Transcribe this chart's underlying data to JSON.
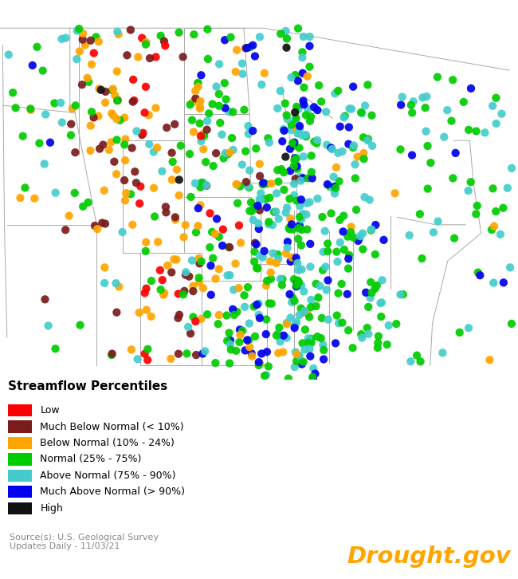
{
  "legend_title": "Streamflow Percentiles",
  "categories": [
    {
      "label": "Low",
      "color": "#FF0000"
    },
    {
      "label": "Much Below Normal (< 10%)",
      "color": "#7B1C1C"
    },
    {
      "label": "Below Normal (10% - 24%)",
      "color": "#FFA500"
    },
    {
      "label": "Normal (25% - 75%)",
      "color": "#00CC00"
    },
    {
      "label": "Above Normal (75% - 90%)",
      "color": "#44CCCC"
    },
    {
      "label": "Much Above Normal (> 90%)",
      "color": "#0000EE"
    },
    {
      "label": "High",
      "color": "#111111"
    }
  ],
  "source_text": "Source(s): U.S. Geological Survey\nUpdates Daily - 11/03/21",
  "drought_gov_text": "Drought.gov",
  "drought_gov_color": "#FFA500",
  "background_color": "#FFFFFF",
  "lon_min": -125,
  "lon_max": -66,
  "lat_min": 36.5,
  "lat_max": 50.0,
  "marker_size": 55,
  "fig_width": 6.5,
  "fig_height": 7.26,
  "dpi": 100
}
